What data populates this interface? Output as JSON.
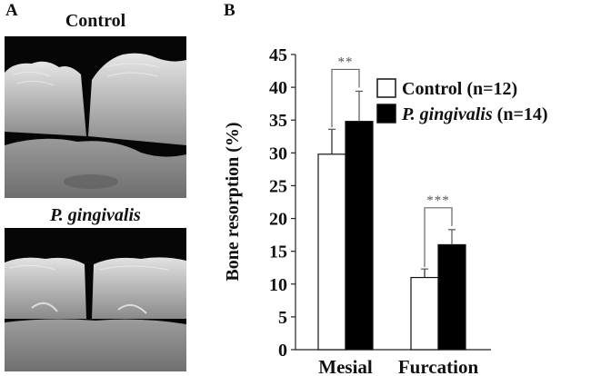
{
  "panel_a": {
    "letter": "A",
    "images": [
      {
        "title": "Control",
        "italic": false
      },
      {
        "title": "P. gingivalis",
        "italic": true
      }
    ]
  },
  "panel_b": {
    "letter": "B"
  },
  "chart_data": {
    "type": "bar",
    "categories": [
      "Mesial",
      "Furcation"
    ],
    "series": [
      {
        "name": "Control",
        "name_suffix": " (n=12)",
        "name_italic": false,
        "color": "#ffffff",
        "values": [
          29.8,
          11.0
        ],
        "errors": [
          3.8,
          1.3
        ]
      },
      {
        "name": "P. gingivalis",
        "name_suffix": " (n=14)",
        "name_italic": true,
        "color": "#000000",
        "values": [
          34.8,
          16.0
        ],
        "errors": [
          4.6,
          2.3
        ]
      }
    ],
    "ylabel": "Bone resorption (%)",
    "ylim": [
      0,
      45
    ],
    "yticks": [
      0,
      5,
      10,
      15,
      20,
      25,
      30,
      35,
      40,
      45
    ],
    "significance": [
      "**",
      "***"
    ],
    "legend_position": "top-right",
    "grid": false
  }
}
